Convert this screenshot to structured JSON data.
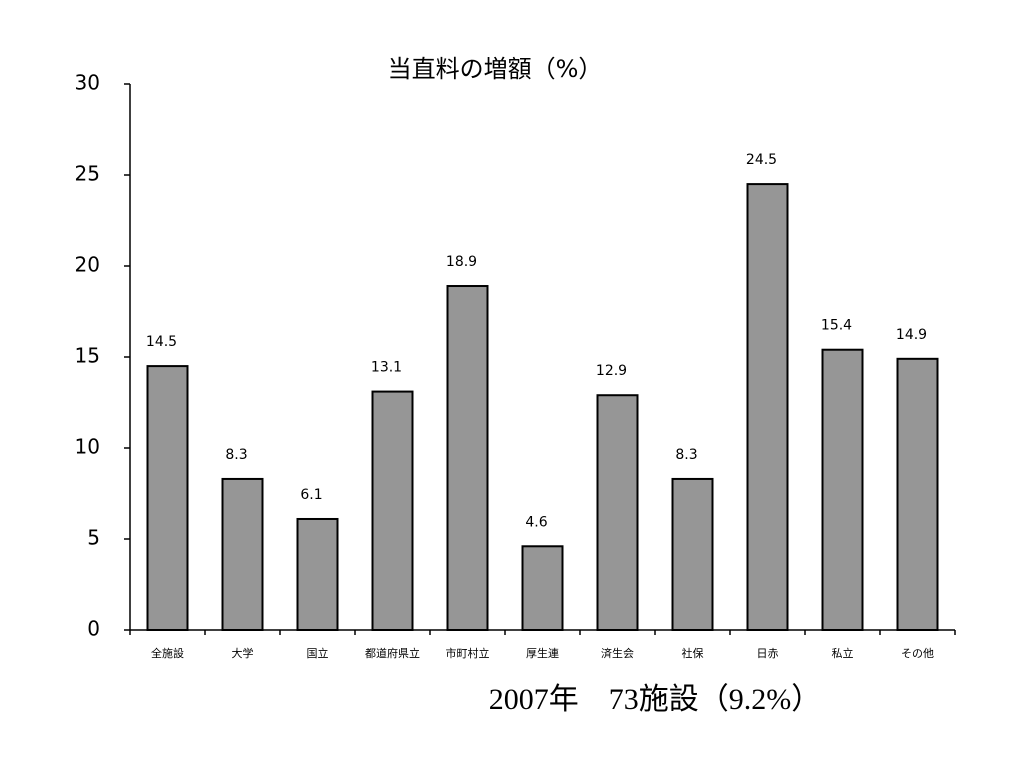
{
  "chart_data": {
    "type": "bar",
    "title": "当直料の増額（%）",
    "annotation": "2007年　73施設（9.2%）",
    "categories": [
      "全施設",
      "大学",
      "国立",
      "都道府県立",
      "市町村立",
      "厚生連",
      "済生会",
      "社保",
      "日赤",
      "私立",
      "その他"
    ],
    "values": [
      14.5,
      8.3,
      6.1,
      13.1,
      18.9,
      4.6,
      12.9,
      8.3,
      24.5,
      15.4,
      14.9
    ],
    "color": "#969696",
    "ylim": [
      0,
      30
    ],
    "yticks": [
      0,
      5,
      10,
      15,
      20,
      25,
      30
    ],
    "grid": false
  }
}
